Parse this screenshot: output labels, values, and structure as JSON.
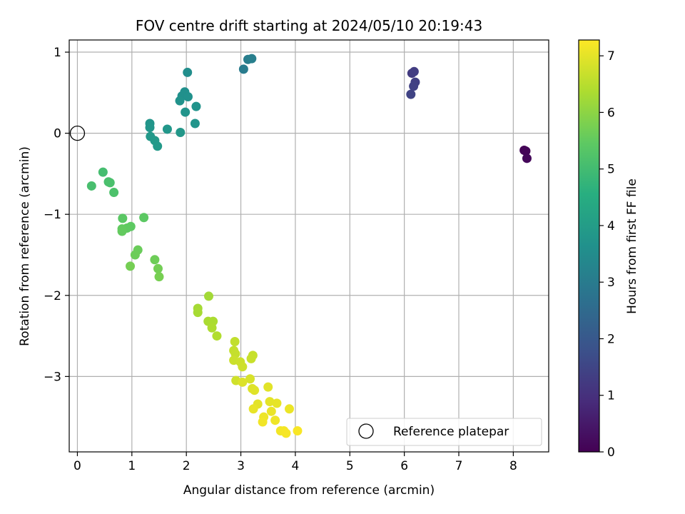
{
  "chart_data": {
    "type": "scatter",
    "title": "FOV centre drift starting at 2024/05/10 20:19:43",
    "xlabel": "Angular distance from reference (arcmin)",
    "ylabel": "Rotation from reference (arcmin)",
    "xlim": [
      -0.15,
      8.65
    ],
    "ylim": [
      -3.93,
      1.15
    ],
    "x_ticks": [
      "0",
      "1",
      "2",
      "3",
      "4",
      "5",
      "6",
      "7",
      "8"
    ],
    "y_ticks": [
      "1",
      "0",
      "−1",
      "−2",
      "−3"
    ],
    "grid": true,
    "legend": {
      "placement": "lower-right",
      "entries": [
        "Reference platepar"
      ]
    },
    "colorbar": {
      "label": "Hours from first FF file",
      "range": [
        0,
        7.28
      ],
      "ticks": [
        "0",
        "1",
        "2",
        "3",
        "4",
        "5",
        "6",
        "7"
      ],
      "colormap": "viridis"
    },
    "reference_point": {
      "x": 0,
      "y": 0
    },
    "series": [
      {
        "points": [
          {
            "x": 8.2,
            "y": -0.21,
            "t": 0.05
          },
          {
            "x": 8.23,
            "y": -0.22,
            "t": 0.08
          },
          {
            "x": 8.25,
            "y": -0.31,
            "t": 0.12
          },
          {
            "x": 6.14,
            "y": 0.74,
            "t": 1.25
          },
          {
            "x": 6.18,
            "y": 0.76,
            "t": 1.3
          },
          {
            "x": 6.2,
            "y": 0.63,
            "t": 1.35
          },
          {
            "x": 6.17,
            "y": 0.58,
            "t": 1.4
          },
          {
            "x": 6.12,
            "y": 0.48,
            "t": 1.45
          },
          {
            "x": 3.05,
            "y": 0.79,
            "t": 3.0
          },
          {
            "x": 3.13,
            "y": 0.91,
            "t": 3.05
          },
          {
            "x": 3.2,
            "y": 0.92,
            "t": 3.1
          },
          {
            "x": 2.02,
            "y": 0.75,
            "t": 3.55
          },
          {
            "x": 1.97,
            "y": 0.51,
            "t": 3.6
          },
          {
            "x": 1.92,
            "y": 0.46,
            "t": 3.62
          },
          {
            "x": 2.03,
            "y": 0.45,
            "t": 3.65
          },
          {
            "x": 1.88,
            "y": 0.4,
            "t": 3.68
          },
          {
            "x": 2.18,
            "y": 0.33,
            "t": 3.7
          },
          {
            "x": 1.98,
            "y": 0.26,
            "t": 3.72
          },
          {
            "x": 2.16,
            "y": 0.12,
            "t": 3.75
          },
          {
            "x": 1.33,
            "y": 0.12,
            "t": 3.78
          },
          {
            "x": 1.33,
            "y": 0.07,
            "t": 3.8
          },
          {
            "x": 1.65,
            "y": 0.05,
            "t": 3.82
          },
          {
            "x": 1.89,
            "y": 0.01,
            "t": 3.84
          },
          {
            "x": 1.34,
            "y": -0.04,
            "t": 3.86
          },
          {
            "x": 1.42,
            "y": -0.09,
            "t": 3.88
          },
          {
            "x": 1.47,
            "y": -0.16,
            "t": 3.9
          },
          {
            "x": 0.47,
            "y": -0.48,
            "t": 5.05
          },
          {
            "x": 0.26,
            "y": -0.65,
            "t": 5.1
          },
          {
            "x": 0.57,
            "y": -0.6,
            "t": 5.12
          },
          {
            "x": 0.6,
            "y": -0.61,
            "t": 5.14
          },
          {
            "x": 0.67,
            "y": -0.73,
            "t": 5.18
          },
          {
            "x": 0.83,
            "y": -1.05,
            "t": 5.4
          },
          {
            "x": 1.22,
            "y": -1.04,
            "t": 5.42
          },
          {
            "x": 0.98,
            "y": -1.15,
            "t": 5.45
          },
          {
            "x": 0.91,
            "y": -1.17,
            "t": 5.47
          },
          {
            "x": 0.82,
            "y": -1.18,
            "t": 5.5
          },
          {
            "x": 0.82,
            "y": -1.21,
            "t": 5.52
          },
          {
            "x": 1.11,
            "y": -1.44,
            "t": 5.6
          },
          {
            "x": 1.06,
            "y": -1.5,
            "t": 5.62
          },
          {
            "x": 1.42,
            "y": -1.56,
            "t": 5.65
          },
          {
            "x": 1.48,
            "y": -1.67,
            "t": 5.7
          },
          {
            "x": 0.97,
            "y": -1.64,
            "t": 5.72
          },
          {
            "x": 1.5,
            "y": -1.77,
            "t": 5.75
          },
          {
            "x": 2.41,
            "y": -2.01,
            "t": 6.25
          },
          {
            "x": 2.21,
            "y": -2.16,
            "t": 6.28
          },
          {
            "x": 2.21,
            "y": -2.21,
            "t": 6.3
          },
          {
            "x": 2.4,
            "y": -2.32,
            "t": 6.33
          },
          {
            "x": 2.49,
            "y": -2.32,
            "t": 6.35
          },
          {
            "x": 2.47,
            "y": -2.4,
            "t": 6.38
          },
          {
            "x": 2.56,
            "y": -2.5,
            "t": 6.42
          },
          {
            "x": 2.89,
            "y": -2.57,
            "t": 6.6
          },
          {
            "x": 2.87,
            "y": -2.68,
            "t": 6.62
          },
          {
            "x": 2.9,
            "y": -2.72,
            "t": 6.64
          },
          {
            "x": 3.22,
            "y": -2.74,
            "t": 6.66
          },
          {
            "x": 3.19,
            "y": -2.78,
            "t": 6.68
          },
          {
            "x": 2.87,
            "y": -2.8,
            "t": 6.7
          },
          {
            "x": 2.99,
            "y": -2.82,
            "t": 6.72
          },
          {
            "x": 3.03,
            "y": -2.88,
            "t": 6.74
          },
          {
            "x": 2.91,
            "y": -3.05,
            "t": 6.76
          },
          {
            "x": 3.17,
            "y": -3.03,
            "t": 6.85
          },
          {
            "x": 3.03,
            "y": -3.07,
            "t": 6.9
          },
          {
            "x": 3.21,
            "y": -3.15,
            "t": 6.92
          },
          {
            "x": 3.25,
            "y": -3.17,
            "t": 6.94
          },
          {
            "x": 3.5,
            "y": -3.13,
            "t": 6.96
          },
          {
            "x": 3.31,
            "y": -3.34,
            "t": 6.98
          },
          {
            "x": 3.53,
            "y": -3.31,
            "t": 7.0
          },
          {
            "x": 3.66,
            "y": -3.33,
            "t": 7.02
          },
          {
            "x": 3.23,
            "y": -3.4,
            "t": 7.04
          },
          {
            "x": 3.56,
            "y": -3.43,
            "t": 7.06
          },
          {
            "x": 3.89,
            "y": -3.4,
            "t": 7.08
          },
          {
            "x": 3.42,
            "y": -3.5,
            "t": 7.1
          },
          {
            "x": 3.63,
            "y": -3.54,
            "t": 7.12
          },
          {
            "x": 3.4,
            "y": -3.56,
            "t": 7.14
          },
          {
            "x": 3.73,
            "y": -3.67,
            "t": 7.16
          },
          {
            "x": 3.79,
            "y": -3.67,
            "t": 7.18
          },
          {
            "x": 3.83,
            "y": -3.7,
            "t": 7.2
          },
          {
            "x": 4.04,
            "y": -3.67,
            "t": 7.22
          }
        ]
      }
    ]
  }
}
